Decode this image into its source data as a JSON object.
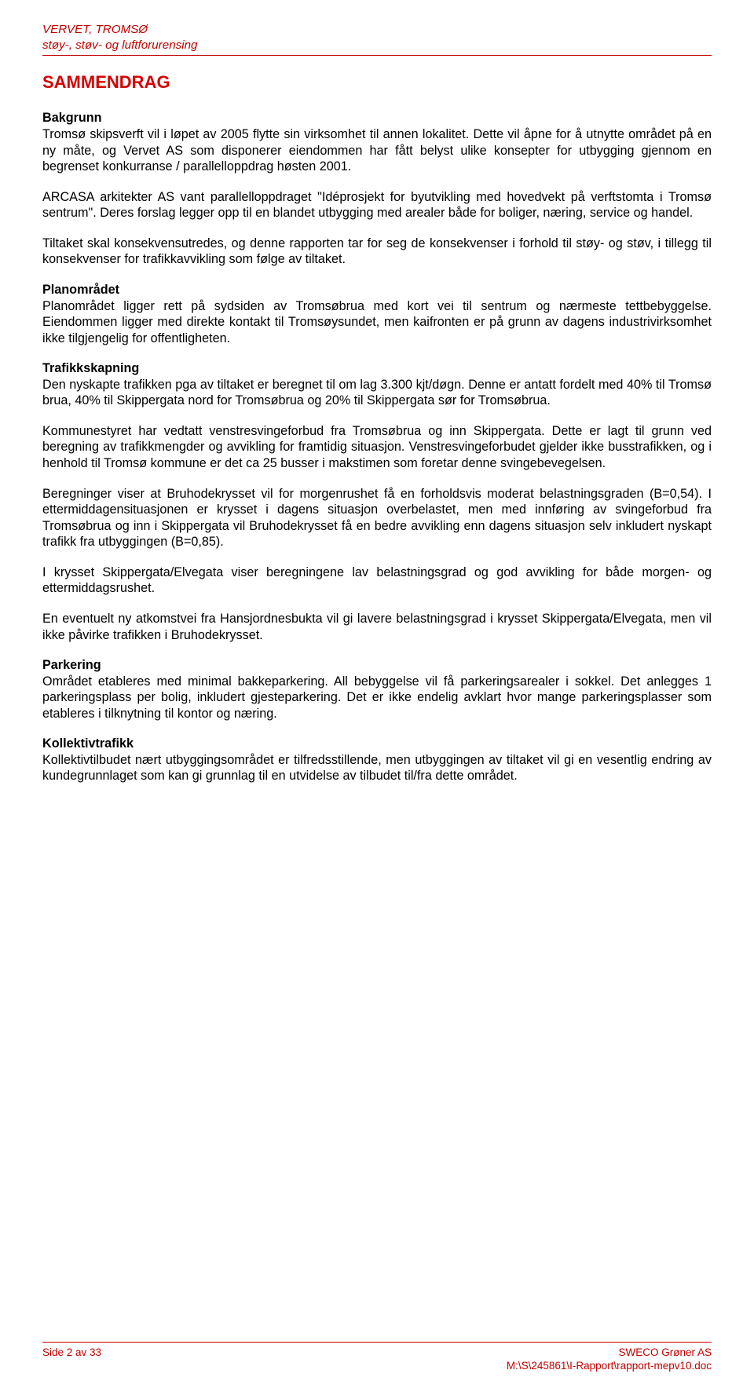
{
  "colors": {
    "header_text": "#c10000",
    "title_text": "#d60000",
    "body_text": "#000000",
    "rule": "#c10000",
    "background": "#ffffff"
  },
  "typography": {
    "body_family": "Arial",
    "body_size_pt": 12,
    "title_size_pt": 16,
    "header_size_pt": 11,
    "footer_size_pt": 10
  },
  "header": {
    "line1": "VERVET, TROMSØ",
    "line2": "støy-, støv- og luftforurensing"
  },
  "title": "SAMMENDRAG",
  "sections": {
    "bakgrunn": {
      "heading": "Bakgrunn",
      "p1": "Tromsø skipsverft vil i løpet av 2005 flytte sin virksomhet til annen lokalitet. Dette vil åpne for å utnytte området på en ny måte, og Vervet AS som disponerer eiendommen har fått belyst ulike konsepter for utbygging gjennom en begrenset konkurranse / parallelloppdrag høsten 2001.",
      "p2": "ARCASA arkitekter AS vant parallelloppdraget \"Idéprosjekt for byutvikling med hovedvekt på verftstomta i Tromsø sentrum\". Deres forslag legger opp til en blandet utbygging med arealer både for boliger, næring, service og handel.",
      "p3": "Tiltaket skal konsekvensutredes, og denne rapporten tar for seg de konsekvenser i forhold til støy- og støv, i tillegg til konsekvenser for trafikkavvikling som følge av tiltaket."
    },
    "planomradet": {
      "heading": "Planområdet",
      "p1": "Planområdet ligger rett på sydsiden av Tromsøbrua med kort vei til sentrum og nærmeste tettbebyggelse. Eiendommen ligger med direkte kontakt til Tromsøysundet, men kaifronten er på grunn av dagens industrivirksomhet ikke tilgjengelig for offentligheten."
    },
    "trafikkskapning": {
      "heading": "Trafikkskapning",
      "p1": "Den nyskapte trafikken pga av tiltaket er beregnet til om lag 3.300 kjt/døgn. Denne er antatt fordelt med 40% til Tromsø brua, 40% til Skippergata nord for Tromsøbrua og 20% til Skippergata sør for Tromsøbrua.",
      "p2": "Kommunestyret har vedtatt venstresvingeforbud fra Tromsøbrua og inn Skippergata. Dette er lagt til grunn ved beregning av trafikkmengder og avvikling for framtidig situasjon. Venstresvingeforbudet gjelder ikke busstrafikken, og i henhold til Tromsø kommune er det ca 25 busser i makstimen som foretar denne svingebevegelsen.",
      "p3": "Beregninger viser at Bruhodekrysset vil for morgenrushet få en forholdsvis moderat belastningsgraden (B=0,54). I ettermiddagensituasjonen er krysset i dagens situasjon overbelastet, men med innføring av svingeforbud fra Tromsøbrua og inn i Skippergata vil Bruhodekrysset få en bedre avvikling enn dagens situasjon selv inkludert nyskapt trafikk fra utbyggingen (B=0,85).",
      "p4": "I krysset Skippergata/Elvegata viser beregningene lav belastningsgrad og god avvikling for både morgen- og ettermiddagsrushet.",
      "p5": "En eventuelt ny atkomstvei fra Hansjordnesbukta vil gi lavere belastningsgrad i krysset Skippergata/Elvegata, men vil ikke påvirke trafikken i Bruhodekrysset."
    },
    "parkering": {
      "heading": "Parkering",
      "p1": "Området etableres med minimal bakkeparkering. All bebyggelse vil få parkeringsarealer i sokkel. Det anlegges 1 parkeringsplass per bolig, inkludert gjesteparkering. Det er ikke endelig avklart hvor mange parkeringsplasser som etableres i tilknytning til kontor og næring."
    },
    "kollektivtrafikk": {
      "heading": "Kollektivtrafikk",
      "p1": "Kollektivtilbudet nært utbyggingsområdet er tilfredsstillende, men utbyggingen av tiltaket vil gi en vesentlig endring av kundegrunnlaget som kan gi grunnlag til en utvidelse av tilbudet til/fra dette området."
    }
  },
  "footer": {
    "left": "Side 2 av 33",
    "right_line1": "SWECO Grøner AS",
    "right_line2": "M:\\S\\245861\\I-Rapport\\rapport-mepv10.doc"
  }
}
